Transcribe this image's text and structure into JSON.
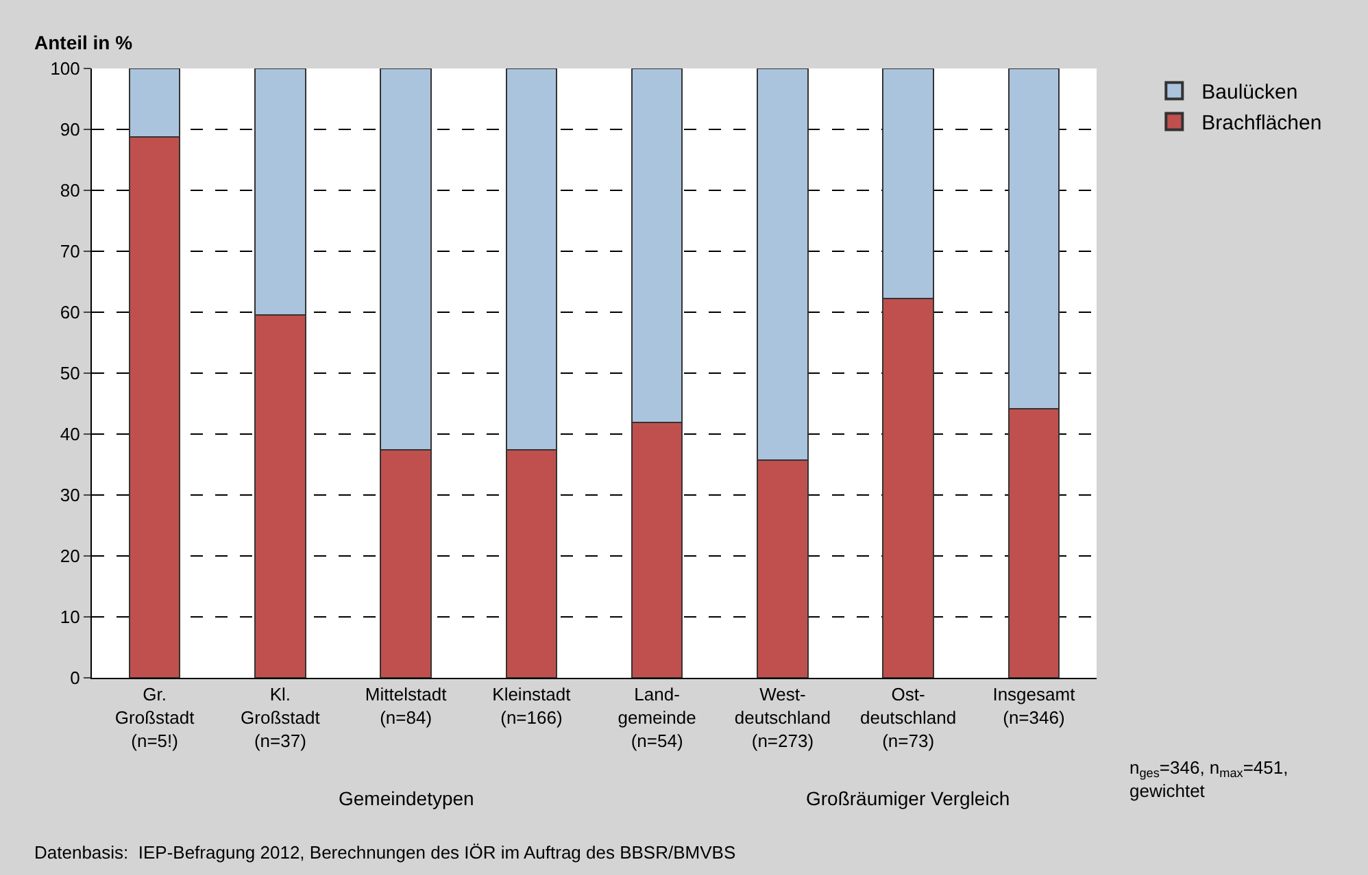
{
  "chart_data": {
    "type": "bar",
    "stacked": true,
    "ylabel": "Anteil in %",
    "categories": [
      "Gr.\nGroßstadt\n(n=5!)",
      "Kl.\nGroßstadt\n(n=37)",
      "Mittelstadt\n(n=84)",
      "Kleinstadt\n(n=166)",
      "Land-\ngemeinde\n(n=54)",
      "West-\ndeutschland\n(n=273)",
      "Ost-\ndeutschland\n(n=73)",
      "Insgesamt\n(n=346)"
    ],
    "series": [
      {
        "name": "Brachflächen",
        "color": "#c0504d",
        "values": [
          88.8,
          59.6,
          37.4,
          37.4,
          41.9,
          35.7,
          62.2,
          44.2
        ]
      },
      {
        "name": "Baulücken",
        "color": "#abc4de",
        "values": [
          11.2,
          40.4,
          62.6,
          62.6,
          58.1,
          64.3,
          37.8,
          55.8
        ]
      }
    ],
    "ylim": [
      0,
      100
    ],
    "yticks": [
      0,
      10,
      20,
      30,
      40,
      50,
      60,
      70,
      80,
      90,
      100
    ],
    "grid": "y",
    "legend": "top right",
    "annotations": [
      "Gemeindetypen",
      "Großräumiger Vergleich",
      "n$_{ges}$=346, n$_{max}$=451,\ngewichtet",
      "Datenbasis:  IEP-Befragung 2012, Berechnungen des IÖR im Auftrag des BBSR/BMVBS"
    ]
  }
}
